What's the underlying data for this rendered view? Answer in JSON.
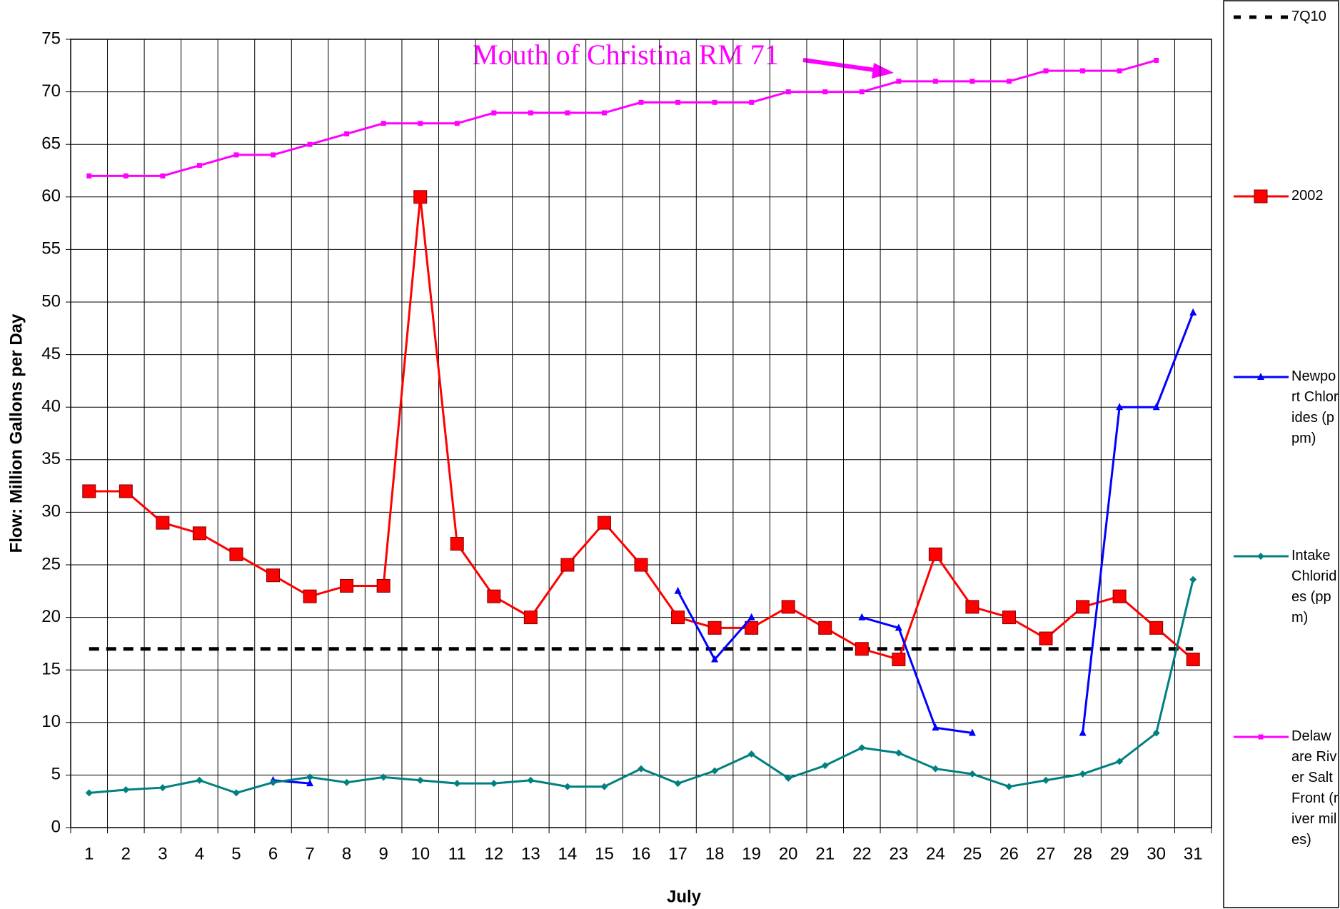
{
  "chart_data": {
    "type": "line",
    "x_label": "July",
    "y_label": "Flow: Million Gallons per Day",
    "annotation": "Mouth of Christina RM 71",
    "categories": [
      "1",
      "2",
      "3",
      "4",
      "5",
      "6",
      "7",
      "8",
      "9",
      "10",
      "11",
      "12",
      "13",
      "14",
      "15",
      "16",
      "17",
      "18",
      "19",
      "20",
      "21",
      "22",
      "23",
      "24",
      "25",
      "26",
      "27",
      "28",
      "29",
      "30",
      "31"
    ],
    "ylim": [
      0,
      75
    ],
    "yticks": [
      0,
      5,
      10,
      15,
      20,
      25,
      30,
      35,
      40,
      45,
      50,
      55,
      60,
      65,
      70,
      75
    ],
    "grid": true,
    "legend": "right",
    "series": [
      {
        "name": "7Q10",
        "color": "#000000",
        "dashed": true,
        "marker": "none",
        "values": [
          17,
          17,
          17,
          17,
          17,
          17,
          17,
          17,
          17,
          17,
          17,
          17,
          17,
          17,
          17,
          17,
          17,
          17,
          17,
          17,
          17,
          17,
          17,
          17,
          17,
          17,
          17,
          17,
          17,
          17,
          17
        ]
      },
      {
        "name": "2002",
        "color": "#ff0000",
        "marker": "square",
        "values": [
          32,
          32,
          29,
          28,
          26,
          24,
          22,
          23,
          23,
          60,
          27,
          22,
          20,
          25,
          29,
          25,
          20,
          19,
          19,
          21,
          19,
          17,
          16,
          26,
          21,
          20,
          18,
          21,
          22,
          19,
          16
        ]
      },
      {
        "name": "Newport Chlorides (ppm)",
        "color": "#0000ff",
        "marker": "triangle",
        "values": [
          null,
          null,
          null,
          null,
          null,
          4.5,
          4.2,
          null,
          null,
          null,
          null,
          null,
          null,
          null,
          null,
          null,
          22.5,
          16,
          20,
          null,
          null,
          20,
          19,
          9.5,
          9,
          null,
          null,
          9,
          40,
          40,
          49
        ]
      },
      {
        "name": "Intake Chlorides (ppm)",
        "color": "#008080",
        "marker": "diamond",
        "values": [
          3.3,
          3.6,
          3.8,
          4.5,
          3.3,
          4.3,
          4.8,
          4.3,
          4.8,
          4.5,
          4.2,
          4.2,
          4.5,
          3.9,
          3.9,
          5.6,
          4.2,
          5.4,
          7,
          4.7,
          5.9,
          7.6,
          7.1,
          5.6,
          5.1,
          3.9,
          4.5,
          5.1,
          6.3,
          9,
          23.6
        ]
      },
      {
        "name": "Delaware River Salt Front (river miles)",
        "color": "#ff00ff",
        "marker": "smallsquare",
        "values": [
          62,
          62,
          62,
          63,
          64,
          64,
          65,
          66,
          67,
          67,
          67,
          68,
          68,
          68,
          68,
          69,
          69,
          69,
          69,
          70,
          70,
          70,
          71,
          71,
          71,
          71,
          72,
          72,
          72,
          73,
          null
        ]
      }
    ]
  }
}
